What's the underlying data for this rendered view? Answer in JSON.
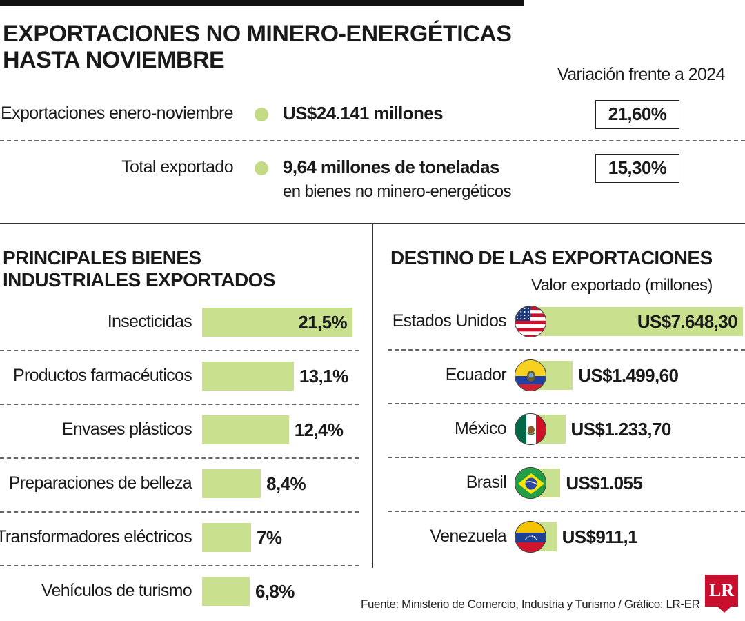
{
  "title_line1": "EXPORTACIONES NO MINERO-ENERGÉTICAS",
  "title_line2": "HASTA NOVIEMBRE",
  "variation_header": "Variación frente a 2024",
  "stats": [
    {
      "label": "Exportaciones enero-noviembre",
      "value": "US$24.141 millones",
      "sub": "",
      "variation": "21,60%"
    },
    {
      "label": "Total exportado",
      "value": "9,64 millones de toneladas",
      "sub": "en bienes no minero-energéticos",
      "variation": "15,30%"
    }
  ],
  "colors": {
    "bar": "#c9e08f",
    "dot": "#c4da84",
    "logo": "#c8102e"
  },
  "goods": {
    "title_line1": "PRINCIPALES BIENES",
    "title_line2": "INDUSTRIALES EXPORTADOS"
  },
  "destinations": {
    "title": "DESTINO DE LAS EXPORTACIONES",
    "subtitle": "Valor exportado (millones)"
  },
  "chart_data": [
    {
      "type": "bar",
      "orientation": "horizontal",
      "title": "PRINCIPALES BIENES INDUSTRIALES EXPORTADOS",
      "unit": "%",
      "categories": [
        "Insecticidas",
        "Productos farmacéuticos",
        "Envases plásticos",
        "Preparaciones de belleza",
        "Transformadores eléctricos",
        "Vehículos de turismo"
      ],
      "values": [
        21.5,
        13.1,
        12.4,
        8.4,
        7,
        6.8
      ],
      "value_labels": [
        "21,5%",
        "13,1%",
        "12,4%",
        "8,4%",
        "7%",
        "6,8%"
      ]
    },
    {
      "type": "bar",
      "orientation": "horizontal",
      "title": "DESTINO DE LAS EXPORTACIONES",
      "subtitle": "Valor exportado (millones)",
      "categories": [
        "Estados Unidos",
        "Ecuador",
        "México",
        "Brasil",
        "Venezuela"
      ],
      "values": [
        7648.3,
        1499.6,
        1233.7,
        1055,
        911.1
      ],
      "value_labels": [
        "US$7.648,30",
        "US$1.499,60",
        "US$1.233,70",
        "US$1.055",
        "US$911,1"
      ],
      "icons": [
        "usa-flag-icon",
        "ecuador-flag-icon",
        "mexico-flag-icon",
        "brazil-flag-icon",
        "venezuela-flag-icon"
      ]
    }
  ],
  "source": "Fuente: Ministerio de Comercio, Industria y Turismo / Gráfico: LR-ER",
  "logo_text": "LR"
}
